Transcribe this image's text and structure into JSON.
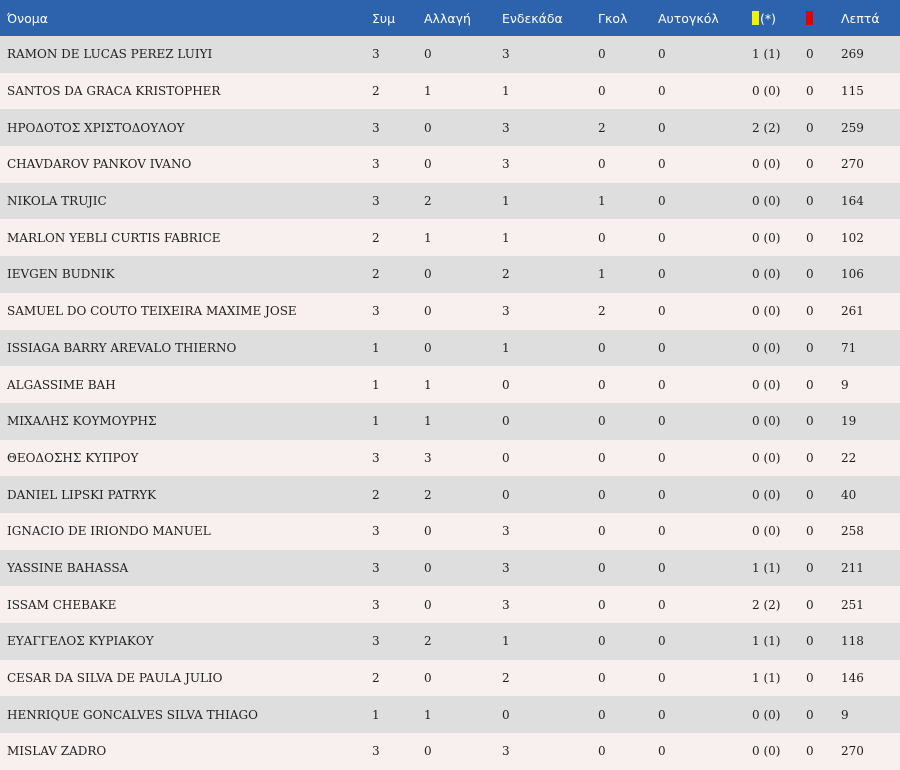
{
  "headers": {
    "name": "Όνομα",
    "apps": "Συμ",
    "sub": "Αλλαγή",
    "start": "Ενδεκάδα",
    "goals": "Γκολ",
    "own_goals": "Αυτογκόλ",
    "yellow": "(*)",
    "minutes": "Λεπτά"
  },
  "card_colors": {
    "yellow": "#f2f200",
    "red": "#e00000"
  },
  "rows": [
    {
      "name": "RAMON DE LUCAS PEREZ LUIYI",
      "apps": "3",
      "sub": "0",
      "start": "3",
      "goals": "0",
      "own_goals": "0",
      "yellow": "1 (1)",
      "red": "0",
      "minutes": "269"
    },
    {
      "name": "SANTOS DA GRACA KRISTOPHER",
      "apps": "2",
      "sub": "1",
      "start": "1",
      "goals": "0",
      "own_goals": "0",
      "yellow": "0 (0)",
      "red": "0",
      "minutes": "115"
    },
    {
      "name": "ΗΡΟΔΟΤΟΣ ΧΡΙΣΤΟΔΟΥΛΟΥ",
      "apps": "3",
      "sub": "0",
      "start": "3",
      "goals": "2",
      "own_goals": "0",
      "yellow": "2 (2)",
      "red": "0",
      "minutes": "259"
    },
    {
      "name": "CHAVDAROV PANKOV IVANO",
      "apps": "3",
      "sub": "0",
      "start": "3",
      "goals": "0",
      "own_goals": "0",
      "yellow": "0 (0)",
      "red": "0",
      "minutes": "270"
    },
    {
      "name": "NIKOLA TRUJIC",
      "apps": "3",
      "sub": "2",
      "start": "1",
      "goals": "1",
      "own_goals": "0",
      "yellow": "0 (0)",
      "red": "0",
      "minutes": "164"
    },
    {
      "name": "MARLON YEBLI CURTIS FABRICE",
      "apps": "2",
      "sub": "1",
      "start": "1",
      "goals": "0",
      "own_goals": "0",
      "yellow": "0 (0)",
      "red": "0",
      "minutes": "102"
    },
    {
      "name": "IEVGEN BUDNIK",
      "apps": "2",
      "sub": "0",
      "start": "2",
      "goals": "1",
      "own_goals": "0",
      "yellow": "0 (0)",
      "red": "0",
      "minutes": "106"
    },
    {
      "name": "SAMUEL DO COUTO TEIXEIRA MAXIME JOSE",
      "apps": "3",
      "sub": "0",
      "start": "3",
      "goals": "2",
      "own_goals": "0",
      "yellow": "0 (0)",
      "red": "0",
      "minutes": "261"
    },
    {
      "name": "ISSIAGA BARRY AREVALO THIERNO",
      "apps": "1",
      "sub": "0",
      "start": "1",
      "goals": "0",
      "own_goals": "0",
      "yellow": "0 (0)",
      "red": "0",
      "minutes": "71"
    },
    {
      "name": "ALGASSIME BAH",
      "apps": "1",
      "sub": "1",
      "start": "0",
      "goals": "0",
      "own_goals": "0",
      "yellow": "0 (0)",
      "red": "0",
      "minutes": "9"
    },
    {
      "name": "ΜΙΧΑΛΗΣ ΚΟΥΜΟΥΡΗΣ",
      "apps": "1",
      "sub": "1",
      "start": "0",
      "goals": "0",
      "own_goals": "0",
      "yellow": "0 (0)",
      "red": "0",
      "minutes": "19"
    },
    {
      "name": "ΘΕΟΔΟΣΗΣ ΚΥΠΡΟΥ",
      "apps": "3",
      "sub": "3",
      "start": "0",
      "goals": "0",
      "own_goals": "0",
      "yellow": "0 (0)",
      "red": "0",
      "minutes": "22"
    },
    {
      "name": "DANIEL LIPSKI PATRYK",
      "apps": "2",
      "sub": "2",
      "start": "0",
      "goals": "0",
      "own_goals": "0",
      "yellow": "0 (0)",
      "red": "0",
      "minutes": "40"
    },
    {
      "name": "IGNACIO DE IRIONDO MANUEL",
      "apps": "3",
      "sub": "0",
      "start": "3",
      "goals": "0",
      "own_goals": "0",
      "yellow": "0 (0)",
      "red": "0",
      "minutes": "258"
    },
    {
      "name": "YASSINE BAHASSA",
      "apps": "3",
      "sub": "0",
      "start": "3",
      "goals": "0",
      "own_goals": "0",
      "yellow": "1 (1)",
      "red": "0",
      "minutes": "211"
    },
    {
      "name": "ISSAM CHEBAKE",
      "apps": "3",
      "sub": "0",
      "start": "3",
      "goals": "0",
      "own_goals": "0",
      "yellow": "2 (2)",
      "red": "0",
      "minutes": "251"
    },
    {
      "name": "ΕΥΑΓΓΕΛΟΣ ΚΥΡΙΑΚΟΥ",
      "apps": "3",
      "sub": "2",
      "start": "1",
      "goals": "0",
      "own_goals": "0",
      "yellow": "1 (1)",
      "red": "0",
      "minutes": "118"
    },
    {
      "name": "CESAR DA SILVA DE PAULA JULIO",
      "apps": "2",
      "sub": "0",
      "start": "2",
      "goals": "0",
      "own_goals": "0",
      "yellow": "1 (1)",
      "red": "0",
      "minutes": "146"
    },
    {
      "name": "HENRIQUE GONCALVES SILVA THIAGO",
      "apps": "1",
      "sub": "1",
      "start": "0",
      "goals": "0",
      "own_goals": "0",
      "yellow": "0 (0)",
      "red": "0",
      "minutes": "9"
    },
    {
      "name": "MISLAV ZADRO",
      "apps": "3",
      "sub": "0",
      "start": "3",
      "goals": "0",
      "own_goals": "0",
      "yellow": "0 (0)",
      "red": "0",
      "minutes": "270"
    }
  ]
}
